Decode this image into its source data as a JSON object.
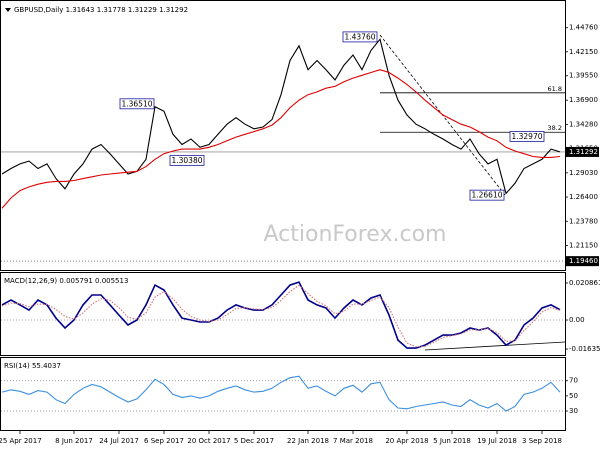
{
  "chart_data": [
    {
      "type": "line",
      "title": "GBPUSD,Daily  1.31643 1.31778 1.31229 1.31292",
      "watermark": "ActionForex.com",
      "categories": [
        null,
        null,
        "25 Apr 2017",
        null,
        null,
        null,
        null,
        null,
        "8 Jun 2017",
        null,
        null,
        null,
        null,
        "24 Jul 2017",
        null,
        null,
        null,
        null,
        "6 Sep 2017",
        null,
        null,
        null,
        null,
        "20 Oct 2017",
        null,
        null,
        null,
        null,
        "5 Dec 2017",
        null,
        null,
        null,
        null,
        null,
        "22 Jan 2018",
        null,
        null,
        null,
        null,
        "7 Mar 2018",
        null,
        null,
        null,
        null,
        null,
        "20 Apr 2018",
        null,
        null,
        null,
        null,
        "5 Jun 2018",
        null,
        null,
        null,
        null,
        "19 Jul 2018",
        null,
        null,
        null,
        null,
        "3 Sep 2018",
        null,
        null
      ],
      "series": [
        {
          "name": "GBPUSD",
          "color": "#000000",
          "values": [
            1.289,
            1.295,
            1.3,
            1.303,
            1.295,
            1.3,
            1.284,
            1.273,
            1.289,
            1.3,
            1.316,
            1.321,
            1.311,
            1.3,
            1.289,
            1.292,
            1.305,
            1.362,
            1.357,
            1.332,
            1.321,
            1.327,
            1.318,
            1.321,
            1.332,
            1.343,
            1.35,
            1.343,
            1.338,
            1.34,
            1.348,
            1.375,
            1.412,
            1.428,
            1.402,
            1.412,
            1.402,
            1.391,
            1.407,
            1.418,
            1.402,
            1.423,
            1.435,
            1.396,
            1.369,
            1.353,
            1.343,
            1.338,
            1.332,
            1.327,
            1.321,
            1.316,
            1.327,
            1.311,
            1.3,
            1.305,
            1.268,
            1.279,
            1.295,
            1.3,
            1.305,
            1.316,
            1.313
          ]
        },
        {
          "name": "MA",
          "color": "#e00000",
          "values": [
            1.252,
            1.263,
            1.271,
            1.275,
            1.278,
            1.28,
            1.281,
            1.281,
            1.282,
            1.284,
            1.286,
            1.288,
            1.289,
            1.29,
            1.291,
            1.292,
            1.297,
            1.305,
            1.311,
            1.314,
            1.316,
            1.316,
            1.316,
            1.318,
            1.321,
            1.325,
            1.329,
            1.332,
            1.335,
            1.338,
            1.342,
            1.35,
            1.361,
            1.369,
            1.375,
            1.378,
            1.382,
            1.384,
            1.389,
            1.393,
            1.396,
            1.399,
            1.402,
            1.399,
            1.393,
            1.386,
            1.378,
            1.369,
            1.361,
            1.353,
            1.348,
            1.343,
            1.34,
            1.335,
            1.329,
            1.325,
            1.318,
            1.314,
            1.311,
            1.308,
            1.307,
            1.307,
            1.308
          ]
        }
      ],
      "ylim": [
        1.185,
        1.4765
      ],
      "yticks": [
        {
          "value": 1.4476,
          "label": "1.44760"
        },
        {
          "value": 1.4215,
          "label": "1.42150"
        },
        {
          "value": 1.3955,
          "label": "1.39550"
        },
        {
          "value": 1.369,
          "label": "1.36900"
        },
        {
          "value": 1.3428,
          "label": "1.34280"
        },
        {
          "value": 1.3165,
          "label": "1.31650"
        },
        {
          "value": 1.2903,
          "label": "1.29030"
        },
        {
          "value": 1.264,
          "label": "1.26400"
        },
        {
          "value": 1.2378,
          "label": "1.23780"
        },
        {
          "value": 1.2115,
          "label": "1.21150"
        }
      ],
      "annotations": [
        {
          "label": "1.43760",
          "value": 1.4376
        },
        {
          "label": "1.36510",
          "value": 1.3651
        },
        {
          "label": "1.30380",
          "value": 1.3038
        },
        {
          "label": "1.32970",
          "value": 1.3297
        },
        {
          "label": "1.26610",
          "value": 1.2661
        }
      ],
      "fib_levels": [
        {
          "label": "61.8",
          "value": 1.377
        },
        {
          "label": "38.2",
          "value": 1.3343
        }
      ],
      "current": {
        "label": "1.31292",
        "value": 1.31292
      },
      "level": {
        "label": "1.19460",
        "value": 1.1946
      }
    },
    {
      "type": "line",
      "title": "MACD(12,26,9) 0.005791 0.005513",
      "series": [
        {
          "name": "MACD",
          "color": "#00008b",
          "values": [
            0.0085,
            0.0113,
            0.0085,
            0.0056,
            0.0113,
            0.0085,
            0.0011,
            -0.0045,
            0,
            0.0085,
            0.0141,
            0.0141,
            0.0085,
            0.0028,
            -0.0028,
            0,
            0.0085,
            0.0197,
            0.0169,
            0.0085,
            0.0011,
            0,
            -0.0011,
            -0.0011,
            0.0011,
            0.0056,
            0.0085,
            0.0068,
            0.0056,
            0.0056,
            0.0085,
            0.0141,
            0.0197,
            0.0214,
            0.0113,
            0.0085,
            0.0068,
            0.0011,
            0.0068,
            0.0113,
            0.0085,
            0.0124,
            0.0141,
            0.0028,
            -0.0113,
            -0.0158,
            -0.0158,
            -0.0141,
            -0.0113,
            -0.0085,
            -0.0085,
            -0.0073,
            -0.0045,
            -0.0056,
            -0.0045,
            -0.0085,
            -0.0141,
            -0.0113,
            -0.0028,
            0.0011,
            0.0068,
            0.0085,
            0.0058
          ]
        },
        {
          "name": "Signal",
          "color": "#d07070",
          "values": [
            0.008,
            0.0095,
            0.0092,
            0.0075,
            0.009,
            0.0088,
            0.006,
            0.002,
            0.0005,
            0.004,
            0.009,
            0.012,
            0.011,
            0.007,
            0.0015,
            0.0005,
            0.004,
            0.013,
            0.016,
            0.012,
            0.006,
            0.002,
            0,
            -0.0008,
            0,
            0.003,
            0.0065,
            0.007,
            0.0062,
            0.0058,
            0.007,
            0.011,
            0.016,
            0.0195,
            0.015,
            0.0105,
            0.008,
            0.0035,
            0.005,
            0.009,
            0.009,
            0.011,
            0.013,
            0.007,
            -0.004,
            -0.013,
            -0.015,
            -0.0148,
            -0.0125,
            -0.0098,
            -0.0088,
            -0.0078,
            -0.0055,
            -0.0055,
            -0.0048,
            -0.007,
            -0.012,
            -0.0118,
            -0.006,
            -0.001,
            0.0045,
            0.007,
            0.0055
          ]
        }
      ],
      "ylim": [
        -0.0197,
        0.0265
      ],
      "yticks": [
        0.020861,
        {
          "value": 0,
          "label": "0.00"
        },
        -0.016357
      ],
      "levels": [
        0
      ]
    },
    {
      "type": "line",
      "title": "RSI(14) 55.4037",
      "series": [
        {
          "name": "RSI",
          "color": "#3d8fe0",
          "values": [
            55,
            58,
            56,
            52,
            57,
            55,
            45,
            40,
            52,
            60,
            65,
            62,
            55,
            48,
            42,
            46,
            58,
            72,
            65,
            52,
            48,
            50,
            47,
            50,
            56,
            60,
            63,
            58,
            55,
            56,
            60,
            68,
            74,
            76,
            60,
            63,
            56,
            50,
            60,
            64,
            55,
            66,
            68,
            45,
            34,
            33,
            36,
            38,
            40,
            42,
            38,
            36,
            45,
            38,
            34,
            40,
            30,
            36,
            52,
            55,
            60,
            68,
            55
          ]
        }
      ],
      "ylim": [
        5,
        100
      ],
      "yticks": [
        70,
        50,
        30
      ],
      "levels": [
        70,
        30
      ]
    }
  ]
}
